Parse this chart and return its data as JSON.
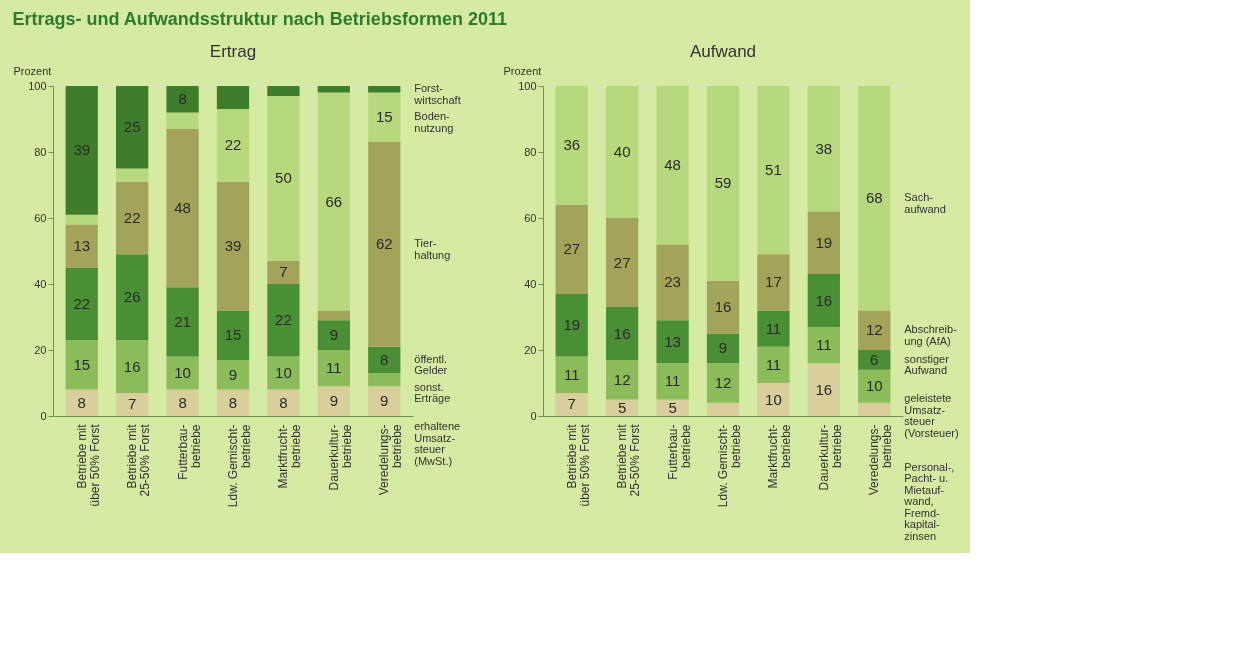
{
  "chart_data": [
    {
      "type": "bar",
      "title": "Ertrags- und Aufwandsstruktur nach Betriebsformen 2011",
      "subtitle": "Ertrag",
      "ylabel": "Prozent",
      "stacked": true,
      "grid": false,
      "ylim": [
        0,
        100
      ],
      "yticks": [
        0,
        20,
        40,
        60,
        80,
        100
      ],
      "categories": [
        "Betriebe mit\nüber 50% Forst",
        "Betriebe mit\n25-50% Forst",
        "Futterbau-\nbetriebe",
        "Ldw. Gemischt-\nbetriebe",
        "Marktfrucht-\nbetriebe",
        "Dauerkultur-\nbetriebe",
        "Veredelungs-\nbetriebe"
      ],
      "series": [
        {
          "name": "erhaltene\nUmsatz-\nsteuer\n(MwSt.)",
          "color": "#d8cf9c",
          "values": [
            8,
            7,
            8,
            8,
            8,
            9,
            9
          ],
          "value_labels": [
            "8",
            "7",
            "8",
            "8",
            "8",
            "9",
            "9"
          ]
        },
        {
          "name": "sonst.\nErträge",
          "color": "#8cbb5a",
          "values": [
            15,
            16,
            10,
            9,
            10,
            11,
            4
          ],
          "value_labels": [
            "15",
            "16",
            "10",
            "9",
            "10",
            "11",
            null
          ]
        },
        {
          "name": "öffentl.\nGelder",
          "color": "#4a8f35",
          "values": [
            22,
            26,
            21,
            15,
            22,
            9,
            8
          ],
          "value_labels": [
            "22",
            "26",
            "21",
            "15",
            "22",
            "9",
            "8"
          ]
        },
        {
          "name": "Tier-\nhaltung",
          "color": "#a3a35a",
          "values": [
            13,
            22,
            48,
            39,
            7,
            3,
            62
          ],
          "value_labels": [
            "13",
            "22",
            "48",
            "39",
            "7",
            null,
            "62"
          ]
        },
        {
          "name": "Boden-\nnutzung",
          "color": "#b8d87e",
          "values": [
            3,
            4,
            5,
            22,
            50,
            66,
            15
          ],
          "value_labels": [
            null,
            null,
            null,
            "22",
            "50",
            "66",
            "15"
          ]
        },
        {
          "name": "Forst-\nwirtschaft",
          "color": "#3d7d2c",
          "values": [
            39,
            25,
            8,
            7,
            3,
            2,
            2
          ],
          "value_labels": [
            "39",
            "25",
            "8",
            null,
            null,
            null,
            null
          ]
        }
      ]
    },
    {
      "type": "bar",
      "subtitle": "Aufwand",
      "ylabel": "Prozent",
      "stacked": true,
      "grid": false,
      "ylim": [
        0,
        100
      ],
      "yticks": [
        0,
        20,
        40,
        60,
        80,
        100
      ],
      "categories": [
        "Betriebe mit\nüber 50% Forst",
        "Betriebe mit\n25-50% Forst",
        "Futterbau-\nbetriebe",
        "Ldw. Gemischt-\nbetriebe",
        "Marktfrucht-\nbetriebe",
        "Dauerkultur-\nbetriebe",
        "Veredelungs-\nbetriebe"
      ],
      "series": [
        {
          "name": "Personal-,\nPacht- u.\nMietauf-\nwand,\nFremd-\nkapital-\nzinsen",
          "color": "#d8cf9c",
          "values": [
            7,
            5,
            5,
            4,
            10,
            16,
            4
          ],
          "value_labels": [
            "7",
            "5",
            "5",
            null,
            "10",
            "16",
            null
          ]
        },
        {
          "name": "geleistete\nUmsatz-\nsteuer\n(Vorsteuer)",
          "color": "#8cbb5a",
          "values": [
            11,
            12,
            11,
            12,
            11,
            11,
            10
          ],
          "value_labels": [
            "11",
            "12",
            "11",
            "12",
            "11",
            "11",
            "10"
          ]
        },
        {
          "name": "sonstiger\nAufwand",
          "color": "#4a8f35",
          "values": [
            19,
            16,
            13,
            9,
            11,
            16,
            6
          ],
          "value_labels": [
            "19",
            "16",
            "13",
            "9",
            "11",
            "16",
            "6"
          ]
        },
        {
          "name": "Abschreib-\nung (AfA)",
          "color": "#a3a35a",
          "values": [
            27,
            27,
            23,
            16,
            17,
            19,
            12
          ],
          "value_labels": [
            "27",
            "27",
            "23",
            "16",
            "17",
            "19",
            "12"
          ]
        },
        {
          "name": "Sach-\naufwand",
          "color": "#b8d87e",
          "values": [
            36,
            40,
            48,
            59,
            51,
            38,
            68
          ],
          "value_labels": [
            "36",
            "40",
            "48",
            "59",
            "51",
            "38",
            "68"
          ]
        }
      ]
    }
  ]
}
